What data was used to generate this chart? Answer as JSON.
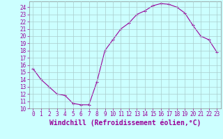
{
  "x": [
    0,
    1,
    2,
    3,
    4,
    5,
    6,
    7,
    8,
    9,
    10,
    11,
    12,
    13,
    14,
    15,
    16,
    17,
    18,
    19,
    20,
    21,
    22,
    23
  ],
  "y": [
    15.5,
    14.0,
    13.0,
    12.0,
    11.8,
    10.7,
    10.5,
    10.5,
    13.7,
    18.0,
    19.5,
    21.0,
    21.8,
    23.0,
    23.5,
    24.2,
    24.5,
    24.4,
    24.0,
    23.2,
    21.5,
    20.0,
    19.5,
    17.8
  ],
  "line_color": "#990099",
  "marker": "+",
  "marker_size": 3,
  "background_color": "#ccffff",
  "grid_color": "#aacccc",
  "xlabel": "Windchill (Refroidissement éolien,°C)",
  "ylabel": "",
  "xlim": [
    -0.5,
    23.5
  ],
  "ylim": [
    10,
    24.8
  ],
  "yticks": [
    10,
    11,
    12,
    13,
    14,
    15,
    16,
    17,
    18,
    19,
    20,
    21,
    22,
    23,
    24
  ],
  "xticks": [
    0,
    1,
    2,
    3,
    4,
    5,
    6,
    7,
    8,
    9,
    10,
    11,
    12,
    13,
    14,
    15,
    16,
    17,
    18,
    19,
    20,
    21,
    22,
    23
  ],
  "tick_color": "#990099",
  "tick_label_fontsize": 5.5,
  "xlabel_fontsize": 7.0,
  "label_color": "#990099",
  "spine_color": "#888888"
}
